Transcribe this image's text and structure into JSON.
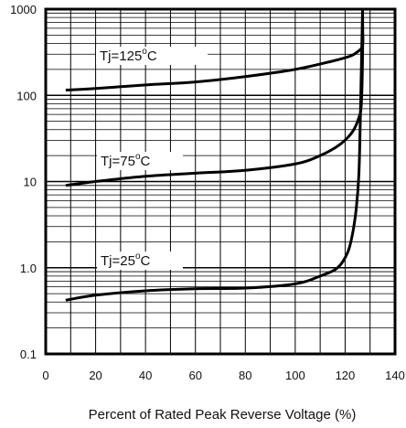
{
  "chart_data": {
    "type": "line",
    "xlabel": "Percent of Rated Peak Reverse Voltage (%)",
    "ylabel": "",
    "x_scale": "linear",
    "y_scale": "log",
    "xlim": [
      0,
      140
    ],
    "ylim": [
      0.1,
      1000
    ],
    "x_ticks": [
      "0",
      "20",
      "40",
      "60",
      "80",
      "100",
      "120",
      "140"
    ],
    "y_ticks": [
      "0.1",
      "1.0",
      "10",
      "100",
      "1000"
    ],
    "grid": true,
    "series": [
      {
        "name": "Tj=125°C",
        "x": [
          8,
          20,
          40,
          60,
          80,
          100,
          115,
          122,
          125,
          127,
          127,
          127
        ],
        "y": [
          115,
          120,
          132,
          143,
          165,
          200,
          250,
          285,
          320,
          380,
          600,
          1000
        ]
      },
      {
        "name": "Tj=75°C",
        "x": [
          8,
          20,
          40,
          60,
          80,
          100,
          110,
          118,
          123,
          125.5,
          126.5,
          127,
          127
        ],
        "y": [
          9,
          10,
          11.5,
          12.5,
          13.5,
          16,
          20,
          27,
          38,
          55,
          80,
          300,
          1000
        ]
      },
      {
        "name": "Tj=25°C",
        "x": [
          8,
          20,
          40,
          60,
          80,
          100,
          110,
          117,
          121,
          123,
          124.5,
          125.5,
          126,
          126.5,
          127
        ],
        "y": [
          0.42,
          0.48,
          0.54,
          0.57,
          0.58,
          0.65,
          0.8,
          1.0,
          1.5,
          2.5,
          5,
          12,
          40,
          200,
          1000
        ]
      }
    ],
    "annotations": [
      {
        "base": "Tj=125",
        "sup": "o",
        "unit": "C"
      },
      {
        "base": "Tj=75",
        "sup": "o",
        "unit": "C"
      },
      {
        "base": "Tj=25",
        "sup": "o",
        "unit": "C"
      }
    ]
  }
}
